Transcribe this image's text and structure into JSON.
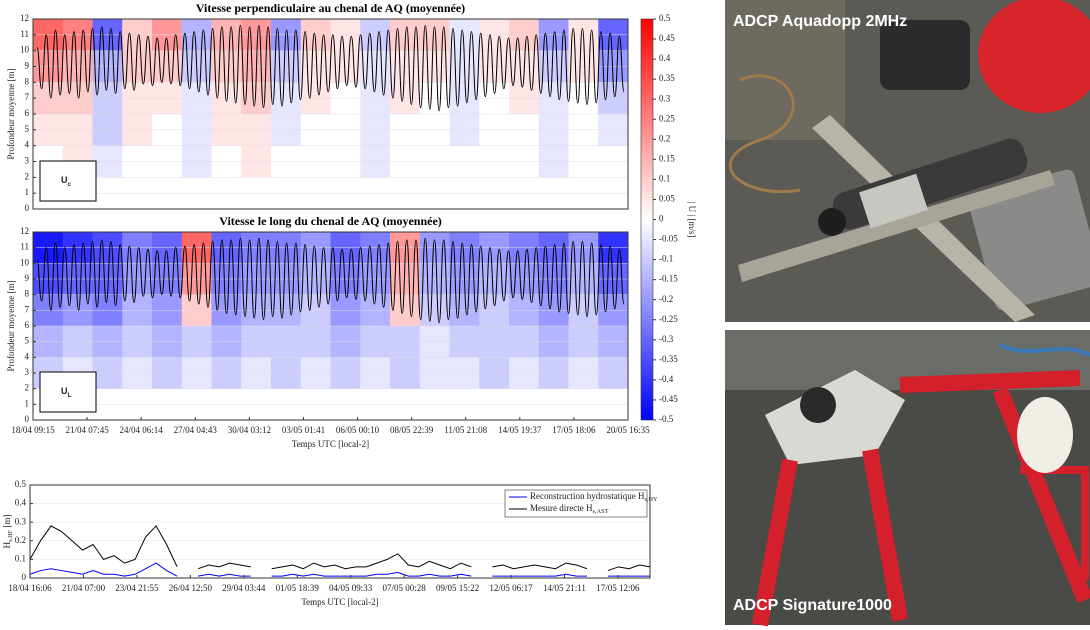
{
  "chart_data": [
    {
      "type": "heatmap",
      "title": "Vitesse perpendiculaire au chenal de AQ (moyennée)",
      "ylabel": "Profondeur moyenne [m]",
      "panel_label": {
        "main": "U",
        "sub": "c"
      },
      "ylim": [
        0,
        12
      ],
      "yticks": [
        0,
        1,
        2,
        3,
        4,
        5,
        6,
        7,
        8,
        9,
        10,
        11,
        12
      ],
      "grid": true,
      "y_bins": [
        2,
        4,
        6,
        8,
        10,
        12
      ],
      "values": [
        [
          0,
          0.05,
          -0.05,
          0,
          0,
          -0.05,
          0,
          0.05,
          0,
          0,
          0,
          -0.05,
          0,
          0,
          0,
          0,
          0,
          -0.05,
          0,
          0
        ],
        [
          0.05,
          0.05,
          -0.1,
          0.05,
          0,
          -0.05,
          0.05,
          0.05,
          -0.05,
          0,
          0,
          -0.05,
          0,
          0,
          -0.05,
          0,
          0,
          -0.05,
          0,
          -0.05
        ],
        [
          0.1,
          0.1,
          -0.1,
          0.05,
          0.05,
          -0.05,
          0.05,
          0.1,
          -0.05,
          0.05,
          0,
          -0.05,
          0.05,
          0,
          -0.05,
          0,
          0.05,
          -0.05,
          0,
          -0.1
        ],
        [
          0.2,
          0.15,
          -0.15,
          0.1,
          0.1,
          -0.1,
          0.1,
          0.15,
          -0.1,
          0.05,
          0.05,
          -0.05,
          0.05,
          0.05,
          -0.05,
          0.05,
          0.05,
          -0.1,
          0.05,
          -0.2
        ],
        [
          0.3,
          0.25,
          -0.3,
          0.1,
          0.2,
          -0.15,
          0.15,
          0.2,
          -0.2,
          0.1,
          0.05,
          -0.1,
          0.1,
          0.1,
          -0.05,
          0.05,
          0.1,
          -0.2,
          0.05,
          -0.3
        ]
      ],
      "surface": [
        10.2,
        7.6,
        11.0,
        7.0,
        11.3,
        7.2,
        11.0,
        7.3,
        11.2,
        7.0,
        11.3,
        7.4,
        11.4,
        7.2,
        11.5,
        7.5,
        11.4,
        7.3,
        11.2,
        7.6,
        11.1,
        7.5,
        11.0,
        7.9,
        10.9,
        7.8,
        10.8,
        8.0,
        10.8,
        7.9,
        11.0,
        7.8,
        11.1,
        7.6,
        11.2,
        7.4,
        11.3,
        7.2,
        11.4,
        7.0,
        11.5,
        6.8,
        11.5,
        6.7,
        11.6,
        6.6,
        11.5,
        6.5,
        11.6,
        6.4,
        11.5,
        6.6,
        11.4,
        6.5,
        11.3,
        6.7,
        11.3,
        6.9,
        11.2,
        7.0,
        11.1,
        7.2,
        11.0,
        7.4,
        11.0,
        7.6,
        10.9,
        7.8,
        10.9,
        7.7,
        11.0,
        7.6,
        11.1,
        7.4,
        11.2,
        7.2,
        11.3,
        7.0,
        11.4,
        6.8,
        11.5,
        6.6,
        11.5,
        6.4,
        11.6,
        6.3,
        11.5,
        6.2,
        11.5,
        6.4,
        11.4,
        6.5,
        11.3,
        6.7,
        11.2,
        6.9,
        11.1,
        7.1,
        11.0,
        7.3,
        10.9,
        7.6,
        10.8,
        7.8,
        10.8,
        7.7,
        10.9,
        7.5,
        11.0,
        7.3,
        11.1,
        7.1,
        11.2,
        6.9,
        11.3,
        6.8,
        11.4,
        6.7,
        11.4,
        6.6,
        11.3,
        6.7,
        11.2,
        6.9,
        11.1,
        7.1,
        10.9,
        7.4
      ]
    },
    {
      "type": "heatmap",
      "title": "Vitesse le long du chenal de AQ (moyennée)",
      "ylabel": "Profondeur moyenne [m]",
      "panel_label": {
        "main": "U",
        "sub": "L"
      },
      "ylim": [
        0,
        12
      ],
      "yticks": [
        0,
        1,
        2,
        3,
        4,
        5,
        6,
        7,
        8,
        9,
        10,
        11,
        12
      ],
      "grid": true,
      "y_bins": [
        2,
        4,
        6,
        8,
        10,
        12
      ],
      "values": [
        [
          -0.1,
          -0.05,
          -0.1,
          -0.05,
          -0.1,
          -0.05,
          -0.1,
          -0.05,
          -0.1,
          -0.05,
          -0.1,
          -0.05,
          -0.1,
          -0.05,
          -0.05,
          -0.1,
          -0.05,
          -0.1,
          -0.05,
          -0.1
        ],
        [
          -0.15,
          -0.1,
          -0.15,
          -0.1,
          -0.15,
          -0.1,
          -0.15,
          -0.1,
          -0.1,
          -0.1,
          -0.15,
          -0.1,
          -0.1,
          -0.05,
          -0.1,
          -0.1,
          -0.1,
          -0.15,
          -0.1,
          -0.15
        ],
        [
          -0.25,
          -0.2,
          -0.25,
          -0.15,
          -0.2,
          0.1,
          -0.2,
          -0.15,
          -0.15,
          -0.1,
          -0.2,
          -0.15,
          0.1,
          -0.1,
          -0.15,
          -0.1,
          -0.15,
          -0.2,
          -0.1,
          -0.2
        ],
        [
          -0.35,
          -0.3,
          -0.3,
          -0.2,
          -0.25,
          0.2,
          -0.25,
          -0.2,
          -0.2,
          -0.15,
          -0.25,
          -0.2,
          0.15,
          -0.15,
          -0.2,
          -0.15,
          -0.2,
          -0.25,
          -0.15,
          -0.3
        ],
        [
          -0.45,
          -0.4,
          -0.35,
          -0.25,
          -0.3,
          0.3,
          -0.3,
          -0.25,
          -0.25,
          -0.2,
          -0.3,
          -0.25,
          0.2,
          -0.2,
          -0.25,
          -0.2,
          -0.25,
          -0.3,
          -0.2,
          -0.4
        ]
      ],
      "surface": [
        10.2,
        7.6,
        11.0,
        7.0,
        11.3,
        7.2,
        11.0,
        7.3,
        11.2,
        7.0,
        11.3,
        7.4,
        11.4,
        7.2,
        11.5,
        7.5,
        11.4,
        7.3,
        11.2,
        7.6,
        11.1,
        7.5,
        11.0,
        7.9,
        10.9,
        7.8,
        10.8,
        8.0,
        10.8,
        7.9,
        11.0,
        7.8,
        11.1,
        7.6,
        11.2,
        7.4,
        11.3,
        7.2,
        11.4,
        7.0,
        11.5,
        6.8,
        11.5,
        6.7,
        11.6,
        6.6,
        11.5,
        6.5,
        11.6,
        6.4,
        11.5,
        6.6,
        11.4,
        6.5,
        11.3,
        6.7,
        11.3,
        6.9,
        11.2,
        7.0,
        11.1,
        7.2,
        11.0,
        7.4,
        11.0,
        7.6,
        10.9,
        7.8,
        10.9,
        7.7,
        11.0,
        7.6,
        11.1,
        7.4,
        11.2,
        7.2,
        11.3,
        7.0,
        11.4,
        6.8,
        11.5,
        6.6,
        11.5,
        6.4,
        11.6,
        6.3,
        11.5,
        6.2,
        11.5,
        6.4,
        11.4,
        6.5,
        11.3,
        6.7,
        11.2,
        6.9,
        11.1,
        7.1,
        11.0,
        7.3,
        10.9,
        7.6,
        10.8,
        7.8,
        10.8,
        7.7,
        10.9,
        7.5,
        11.0,
        7.3,
        11.1,
        7.1,
        11.2,
        6.9,
        11.3,
        6.8,
        11.4,
        6.7,
        11.4,
        6.6,
        11.3,
        6.7,
        11.2,
        6.9,
        11.1,
        7.1,
        10.9,
        7.4
      ],
      "xtick_labels": [
        "18/04 09:15",
        "21/04 07:45",
        "24/04 06:14",
        "27/04 04:43",
        "30/04 03:12",
        "03/05 01:41",
        "06/05 00:10",
        "08/05 22:39",
        "11/05 21:08",
        "14/05 19:37",
        "17/05 18:06",
        "20/05 16:35"
      ],
      "xlabel": "Temps UTC [local-2]"
    },
    {
      "type": "line",
      "ylabel": {
        "main": "H",
        "sub": "s,HF",
        "unit": " [m]"
      },
      "ylim": [
        0,
        0.5
      ],
      "yticks": [
        0,
        0.1,
        0.2,
        0.3,
        0.4,
        0.5
      ],
      "grid": true,
      "legend": "top-right",
      "xtick_labels": [
        "18/04 16:06",
        "21/04 07:00",
        "23/04 21:55",
        "26/04 12:50",
        "29/04 03:44",
        "01/05 18:39",
        "04/05 09:33",
        "07/05 00:28",
        "09/05 15:22",
        "12/05 06:17",
        "14/05 21:11",
        "17/05 12:06"
      ],
      "xlabel": "Temps UTC [local-2]",
      "series": [
        {
          "name": {
            "main": "Reconstruction hydrostatique H",
            "sub": "s,HY"
          },
          "color": "#0000ff",
          "values": [
            0.02,
            0.04,
            0.05,
            0.04,
            0.03,
            0.02,
            0.04,
            0.02,
            0.02,
            0.01,
            0.02,
            0.05,
            0.08,
            0.04,
            0.01,
            null,
            0.01,
            0.02,
            0.01,
            0.02,
            0.01,
            0.01,
            null,
            0.01,
            0.01,
            0.02,
            0.01,
            0.02,
            0.01,
            0.01,
            0.01,
            0.01,
            0.01,
            0.02,
            0.02,
            0.03,
            0.01,
            0.01,
            0.02,
            0.01,
            0.01,
            0.02,
            0.01,
            null,
            0.01,
            0.01,
            0.01,
            0.01,
            0.01,
            0.01,
            0.01,
            0.02,
            0.01,
            0.01,
            null,
            0.01,
            0.01,
            0.01,
            0.01,
            0.01
          ]
        },
        {
          "name": {
            "main": "Mesure directe H",
            "sub": "s,AST"
          },
          "color": "#000000",
          "values": [
            0.1,
            0.2,
            0.28,
            0.25,
            0.2,
            0.15,
            0.18,
            0.1,
            0.12,
            0.08,
            0.1,
            0.22,
            0.28,
            0.18,
            0.06,
            null,
            0.05,
            0.07,
            0.06,
            0.08,
            0.07,
            0.06,
            null,
            0.05,
            0.06,
            0.07,
            0.05,
            0.08,
            0.06,
            0.07,
            0.05,
            0.06,
            0.06,
            0.08,
            0.1,
            0.13,
            0.07,
            0.06,
            0.09,
            0.07,
            0.05,
            0.08,
            0.06,
            null,
            0.06,
            0.07,
            0.05,
            0.06,
            0.07,
            0.06,
            0.05,
            0.08,
            0.07,
            0.05,
            null,
            0.04,
            0.06,
            0.05,
            0.07,
            0.06
          ]
        }
      ]
    }
  ],
  "colorbar": {
    "lim": [
      -0.5,
      0.5
    ],
    "ticks": [
      0.5,
      0.45,
      0.4,
      0.35,
      0.3,
      0.25,
      0.2,
      0.15,
      0.1,
      0.05,
      0,
      -0.05,
      -0.1,
      -0.15,
      -0.2,
      -0.25,
      -0.3,
      -0.35,
      -0.4,
      -0.45,
      -0.5
    ],
    "label": "| U | [m/s]"
  },
  "photos": [
    {
      "label": "ADCP Aquadopp 2MHz"
    },
    {
      "label": "ADCP Signature1000"
    }
  ]
}
